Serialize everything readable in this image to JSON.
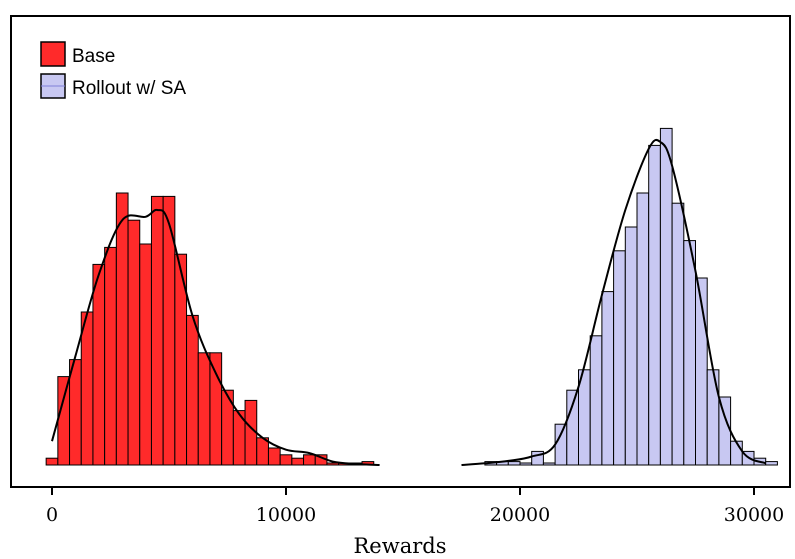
{
  "chart_data": {
    "type": "bar",
    "subtype": "histogram with density curves",
    "title": "",
    "xlabel": "Rewards",
    "ylabel": "",
    "xlim": [
      -400,
      31000
    ],
    "xticks": [
      0,
      10000,
      20000,
      30000
    ],
    "xtick_labels": [
      "0",
      "10000",
      "20000",
      "30000"
    ],
    "y_axis_shown": false,
    "grid": false,
    "legend_position": "top-left",
    "bin_width": 500,
    "series": [
      {
        "name": "Base",
        "color": "#ff2a2a",
        "bins": [
          {
            "x0": -250,
            "count": 2
          },
          {
            "x0": 250,
            "count": 26
          },
          {
            "x0": 750,
            "count": 31
          },
          {
            "x0": 1250,
            "count": 45
          },
          {
            "x0": 1750,
            "count": 59
          },
          {
            "x0": 2250,
            "count": 64
          },
          {
            "x0": 2750,
            "count": 80
          },
          {
            "x0": 3250,
            "count": 72
          },
          {
            "x0": 3750,
            "count": 65
          },
          {
            "x0": 4250,
            "count": 79
          },
          {
            "x0": 4750,
            "count": 79
          },
          {
            "x0": 5250,
            "count": 62
          },
          {
            "x0": 5750,
            "count": 44
          },
          {
            "x0": 6250,
            "count": 33
          },
          {
            "x0": 6750,
            "count": 33
          },
          {
            "x0": 7250,
            "count": 22
          },
          {
            "x0": 7750,
            "count": 16
          },
          {
            "x0": 8250,
            "count": 19
          },
          {
            "x0": 8750,
            "count": 8
          },
          {
            "x0": 9250,
            "count": 5
          },
          {
            "x0": 9750,
            "count": 3
          },
          {
            "x0": 10250,
            "count": 2
          },
          {
            "x0": 10750,
            "count": 3
          },
          {
            "x0": 11250,
            "count": 3
          },
          {
            "x0": 11750,
            "count": 0
          },
          {
            "x0": 12250,
            "count": 0
          },
          {
            "x0": 12750,
            "count": 0
          },
          {
            "x0": 13250,
            "count": 1
          }
        ],
        "density_curve": [
          [
            0,
            7
          ],
          [
            1000,
            32
          ],
          [
            2000,
            56
          ],
          [
            3000,
            72
          ],
          [
            4000,
            73
          ],
          [
            4500,
            75
          ],
          [
            5000,
            71
          ],
          [
            6000,
            44
          ],
          [
            7000,
            27
          ],
          [
            8000,
            15
          ],
          [
            9000,
            8
          ],
          [
            10000,
            4.5
          ],
          [
            11000,
            3.5
          ],
          [
            12000,
            1
          ],
          [
            13000,
            0.3
          ],
          [
            14000,
            0
          ]
        ]
      },
      {
        "name": "Rollout w/ SA",
        "color": "#c8c8f2",
        "bins": [
          {
            "x0": 18500,
            "count": 1
          },
          {
            "x0": 19000,
            "count": 1
          },
          {
            "x0": 19500,
            "count": 1
          },
          {
            "x0": 20000,
            "count": 0
          },
          {
            "x0": 20500,
            "count": 4
          },
          {
            "x0": 21000,
            "count": 0
          },
          {
            "x0": 21500,
            "count": 12
          },
          {
            "x0": 22000,
            "count": 22
          },
          {
            "x0": 22500,
            "count": 28
          },
          {
            "x0": 23000,
            "count": 38
          },
          {
            "x0": 23500,
            "count": 51
          },
          {
            "x0": 24000,
            "count": 63
          },
          {
            "x0": 24500,
            "count": 70
          },
          {
            "x0": 25000,
            "count": 80
          },
          {
            "x0": 25500,
            "count": 94
          },
          {
            "x0": 26000,
            "count": 99
          },
          {
            "x0": 26500,
            "count": 77
          },
          {
            "x0": 27000,
            "count": 66
          },
          {
            "x0": 27500,
            "count": 55
          },
          {
            "x0": 28000,
            "count": 28
          },
          {
            "x0": 28500,
            "count": 20
          },
          {
            "x0": 29000,
            "count": 7
          },
          {
            "x0": 29500,
            "count": 4
          },
          {
            "x0": 30000,
            "count": 2
          },
          {
            "x0": 30500,
            "count": 1
          }
        ],
        "density_curve": [
          [
            17500,
            0
          ],
          [
            18500,
            0.5
          ],
          [
            19500,
            1.2
          ],
          [
            20500,
            2.5
          ],
          [
            21500,
            6
          ],
          [
            22500,
            23
          ],
          [
            23500,
            50
          ],
          [
            24500,
            75
          ],
          [
            25500,
            93
          ],
          [
            26000,
            95
          ],
          [
            26500,
            88
          ],
          [
            27500,
            57
          ],
          [
            28500,
            20
          ],
          [
            29500,
            4
          ],
          [
            30500,
            0.5
          ]
        ]
      }
    ]
  }
}
